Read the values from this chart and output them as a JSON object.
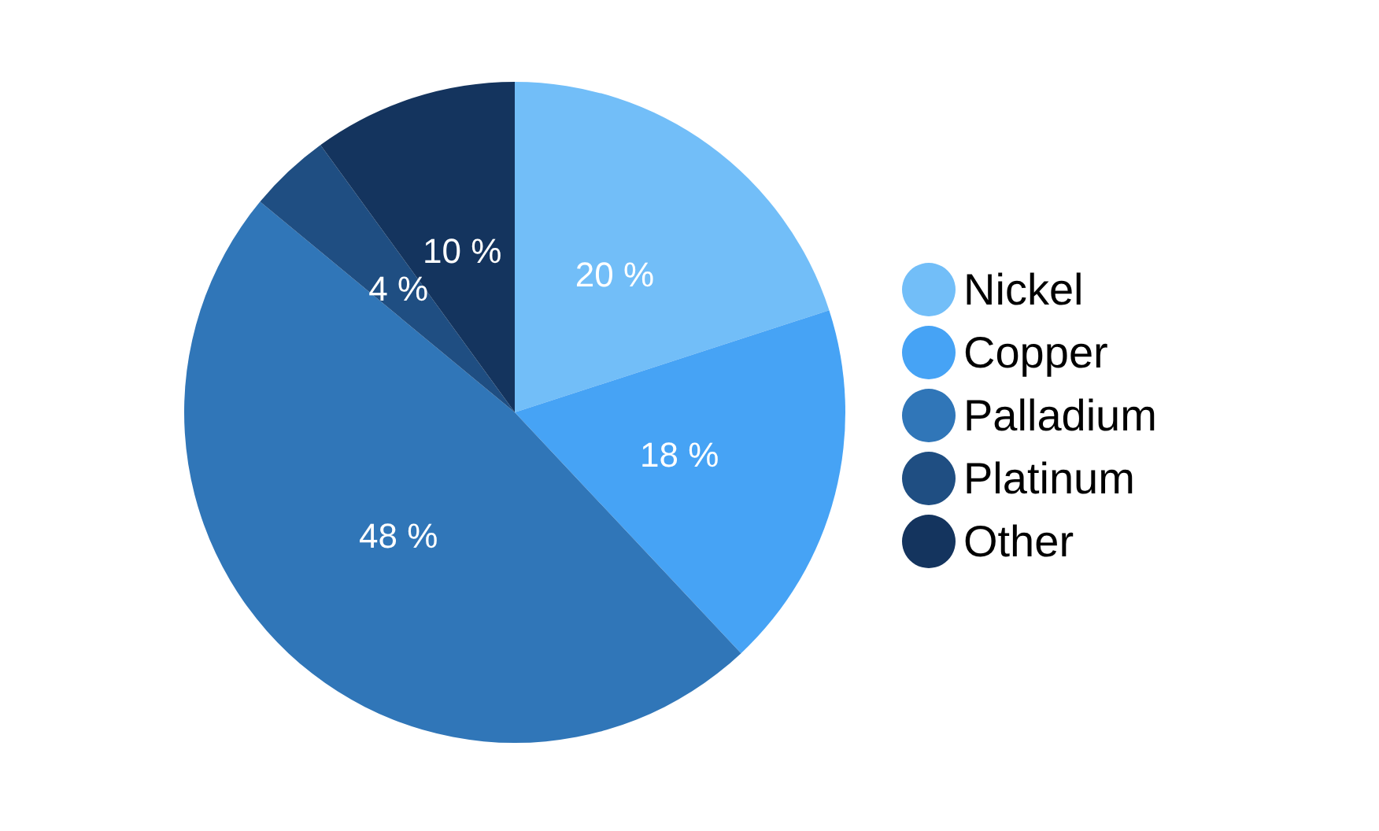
{
  "chart_data": {
    "type": "pie",
    "categories": [
      "Nickel",
      "Copper",
      "Palladium",
      "Platinum",
      "Other"
    ],
    "values": [
      20,
      18,
      48,
      4,
      10
    ],
    "colors": [
      "#72bef8",
      "#46a3f5",
      "#3076b8",
      "#1f4e82",
      "#14345e"
    ],
    "value_labels": [
      "20 %",
      "18 %",
      "48 %",
      "4 %",
      "10 %"
    ],
    "legend": "right"
  }
}
